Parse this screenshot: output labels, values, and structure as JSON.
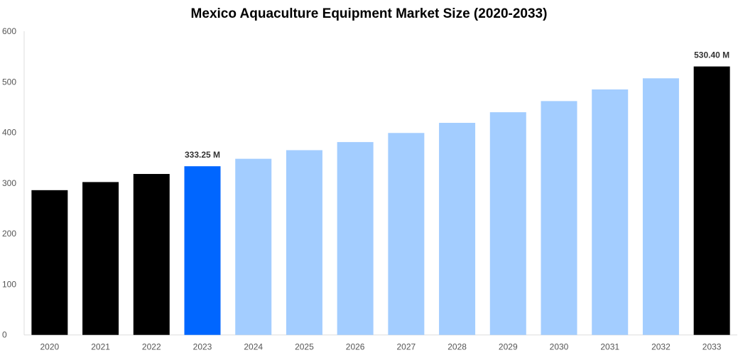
{
  "chart_data": {
    "type": "bar",
    "title": "Mexico Aquaculture Equipment Market Size (2020-2033)",
    "xlabel": "",
    "ylabel": "",
    "ylim": [
      0,
      600
    ],
    "yticks": [
      0,
      100,
      200,
      300,
      400,
      500,
      600
    ],
    "grid": false,
    "categories": [
      "2020",
      "2021",
      "2022",
      "2023",
      "2024",
      "2025",
      "2026",
      "2027",
      "2028",
      "2029",
      "2030",
      "2031",
      "2032",
      "2033"
    ],
    "values": [
      286,
      302,
      318,
      333.25,
      348,
      365,
      381,
      399,
      419,
      440,
      462,
      485,
      507,
      530.4
    ],
    "colors": [
      "#000000",
      "#000000",
      "#000000",
      "#0066ff",
      "#a3cdff",
      "#a3cdff",
      "#a3cdff",
      "#a3cdff",
      "#a3cdff",
      "#a3cdff",
      "#a3cdff",
      "#a3cdff",
      "#a3cdff",
      "#000000"
    ],
    "data_labels": [
      {
        "category": "2023",
        "text": "333.25 M"
      },
      {
        "category": "2033",
        "text": "530.40 M"
      }
    ]
  }
}
